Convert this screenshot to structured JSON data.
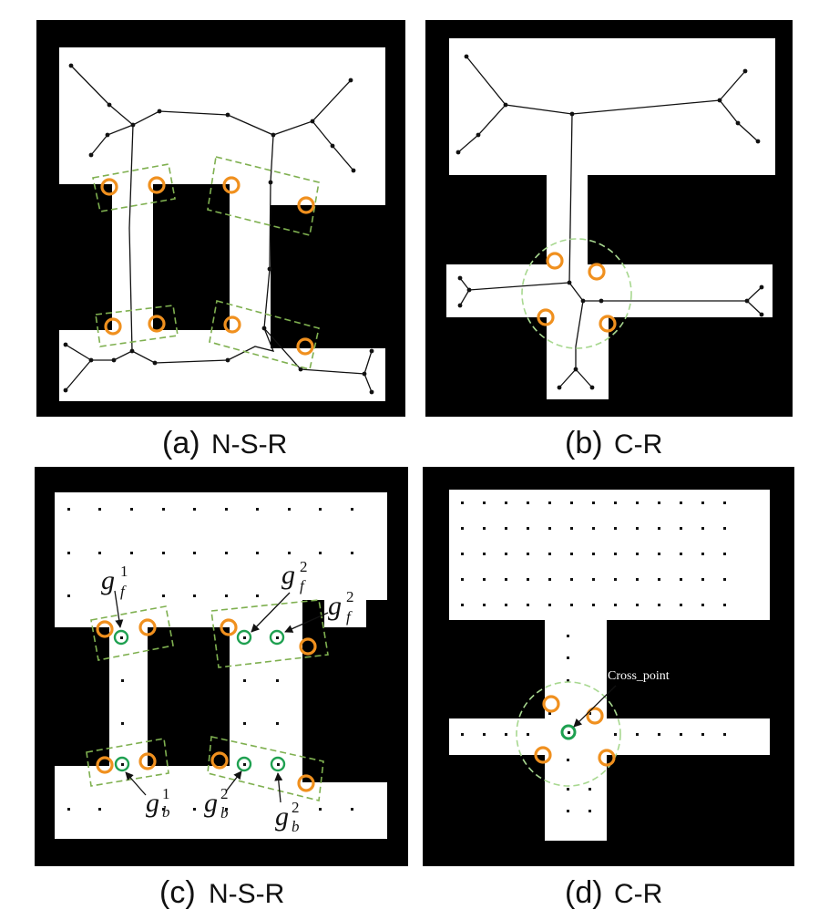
{
  "panels": [
    {
      "letter": "(a)",
      "name": "N-S-R"
    },
    {
      "letter": "(b)",
      "name": "C-R"
    },
    {
      "letter": "(c)",
      "name": "N-S-R"
    },
    {
      "letter": "(d)",
      "name": "C-R"
    }
  ],
  "annotations": {
    "gf1": {
      "base": "g",
      "sup": "1",
      "sub": "f"
    },
    "gf2_a": {
      "base": "g",
      "sup": "2",
      "sub": "f"
    },
    "gf2_b": {
      "base": "g",
      "sup": "2",
      "sub": "f"
    },
    "gb1": {
      "base": "g",
      "sup": "1",
      "sub": "b"
    },
    "gb2_a": {
      "base": "g",
      "sup": "2",
      "sub": "b"
    },
    "gb2_b": {
      "base": "g",
      "sup": "2",
      "sub": "b"
    },
    "cross_point": "Cross_point"
  },
  "colors": {
    "obstacle": "#000000",
    "free_space": "#ffffff",
    "gateway_circle": "#f0901e",
    "goal_circle": "#1ea050",
    "region_box": "#7fb050"
  }
}
